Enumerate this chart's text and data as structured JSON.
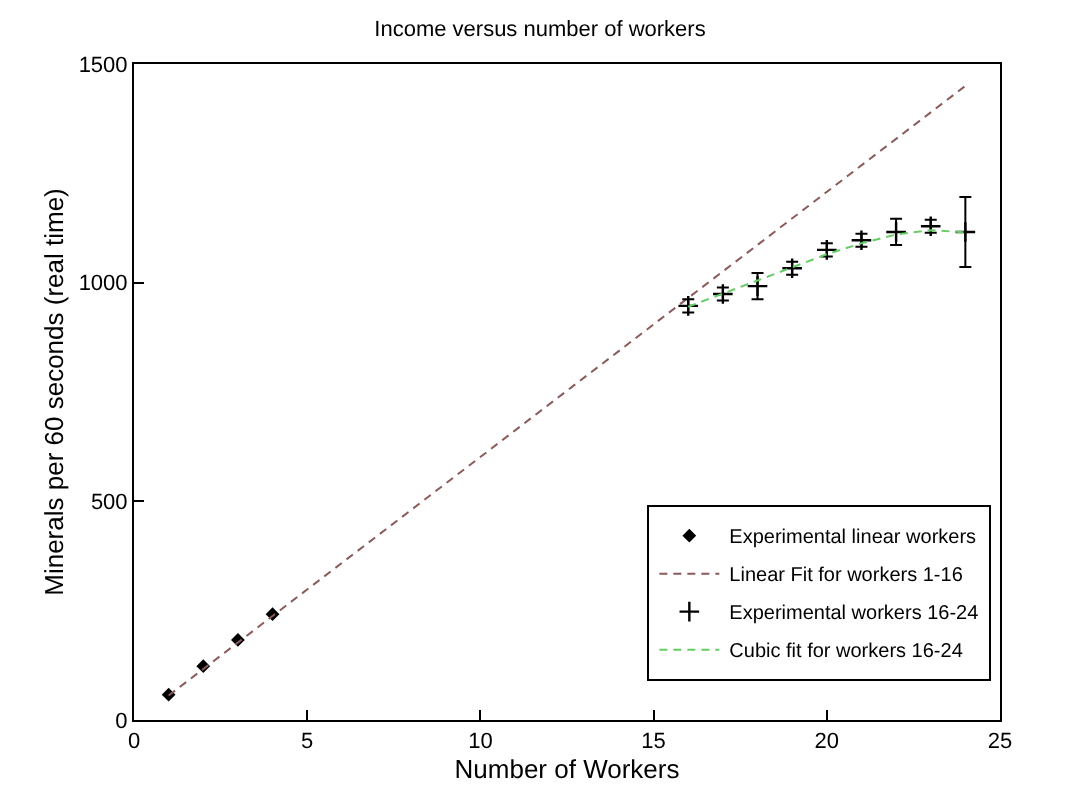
{
  "chart_data": {
    "type": "scatter",
    "title": "Income versus number of workers",
    "xlabel": "Number of Workers",
    "ylabel": "Minerals per 60 seconds (real time)",
    "xlim": [
      0,
      25
    ],
    "ylim": [
      0,
      1500
    ],
    "xticks": [
      0,
      5,
      10,
      15,
      20,
      25
    ],
    "yticks": [
      0,
      500,
      1000,
      1500
    ],
    "legend": "bottom right",
    "series": [
      {
        "name": "Experimental linear workers",
        "marker": "diamond",
        "color": "#000000",
        "x": [
          1,
          2,
          3,
          4
        ],
        "values": [
          58,
          123,
          183,
          242
        ]
      },
      {
        "name": "Linear Fit for workers 1-16",
        "type": "line",
        "line_style": "dashed",
        "color": "#8b5a5a",
        "x": [
          1,
          24
        ],
        "values": [
          56,
          1450
        ]
      },
      {
        "name": "Experimental workers 16-24",
        "marker": "cross",
        "color": "#000000",
        "x": [
          16,
          17,
          18,
          19,
          20,
          21,
          22,
          23,
          24
        ],
        "values": [
          947,
          974,
          992,
          1033,
          1075,
          1097,
          1116,
          1129,
          1116
        ],
        "errors": [
          15,
          15,
          30,
          15,
          15,
          15,
          30,
          15,
          80
        ]
      },
      {
        "name": "Cubic fit for workers 16-24",
        "type": "line",
        "line_style": "dashed",
        "color": "#66cc66",
        "x": [
          16,
          17,
          18,
          19,
          20,
          21,
          22,
          23,
          24
        ],
        "values": [
          945,
          975,
          1005,
          1035,
          1065,
          1090,
          1110,
          1120,
          1115
        ]
      }
    ]
  }
}
